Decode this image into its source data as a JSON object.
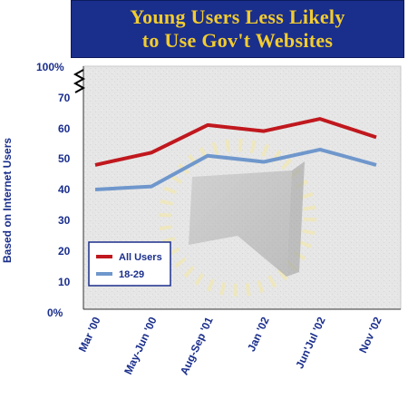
{
  "title": {
    "line1": "Young Users Less Likely",
    "line2": "to Use Gov't Websites"
  },
  "colors": {
    "title_bg": "#1a2e8c",
    "title_text": "#f2cc2e",
    "axis_text": "#1a2e8c",
    "all_users": "#c0181e",
    "age_18_29": "#6f97cc",
    "plot_bg": "#e8e8e8"
  },
  "chart_data": {
    "type": "line",
    "title": "Young Users Less Likely to Use Gov't Websites",
    "ylabel": "Based on Internet Users",
    "xlabel": "",
    "categories": [
      "Mar '00",
      "May-Jun '00",
      "Aug-Sep '01",
      "Jan '02",
      "Jun'Jul '02",
      "Nov '02"
    ],
    "series": [
      {
        "name": "All Users",
        "values": [
          47,
          51,
          60,
          58,
          62,
          56
        ]
      },
      {
        "name": "18-29",
        "values": [
          39,
          40,
          50,
          48,
          52,
          47
        ]
      }
    ],
    "yticks": [
      "0%",
      "10",
      "20",
      "30",
      "40",
      "50",
      "60",
      "70",
      "100%"
    ],
    "ylim": [
      0,
      100
    ],
    "axis_break": true,
    "grid": false,
    "legend_position": "bottom-left"
  }
}
